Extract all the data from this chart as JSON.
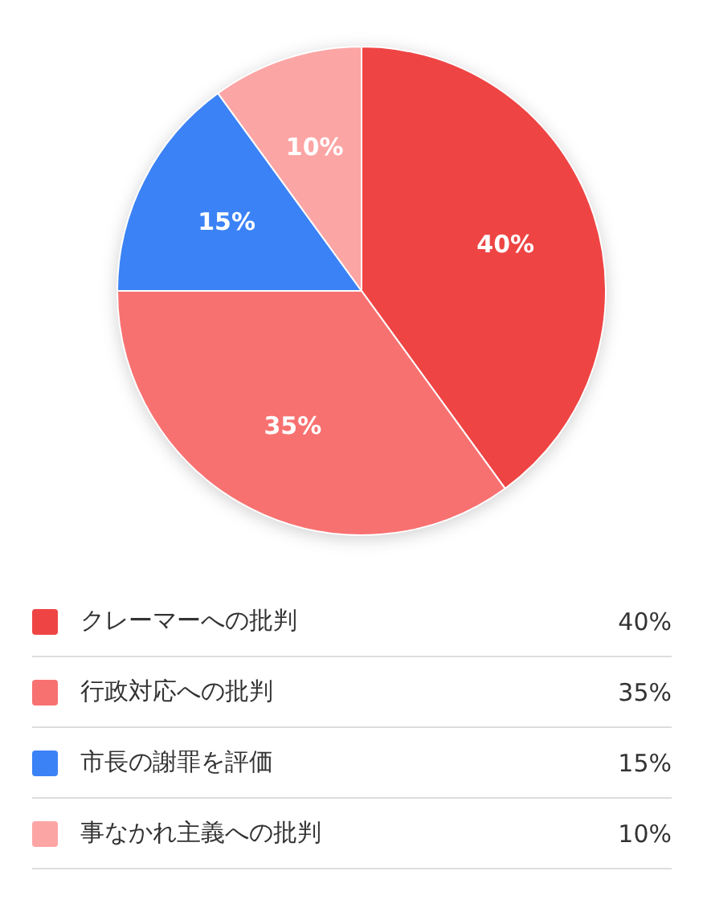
{
  "chart_data": {
    "type": "pie",
    "categories": [
      "クレーマーへの批判",
      "行政対応への批判",
      "市長の謝罪を評価",
      "事なかれ主義への批判"
    ],
    "values": [
      40,
      35,
      15,
      10
    ],
    "value_labels": [
      "40%",
      "35%",
      "15%",
      "10%"
    ],
    "colors": [
      "#ef4444",
      "#f87171",
      "#3b82f6",
      "#fca5a5"
    ],
    "legend": "bottom"
  }
}
